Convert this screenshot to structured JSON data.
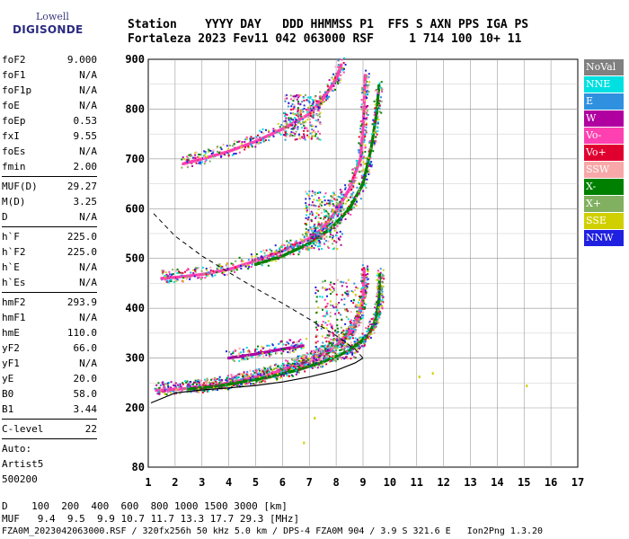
{
  "logo": {
    "line1": "Lowell",
    "line2": "DIGISONDE"
  },
  "header": {
    "labels": "Station    YYYY DAY   DDD HHMMSS P1  FFS S AXN PPS IGA PS",
    "values": "Fortaleza 2023 Fev11 042 063000 RSF     1 714 100 10+ 11"
  },
  "params": [
    {
      "label": "foF2",
      "value": "9.000"
    },
    {
      "label": "foF1",
      "value": "N/A"
    },
    {
      "label": "foF1p",
      "value": "N/A"
    },
    {
      "label": "foE",
      "value": "N/A"
    },
    {
      "label": "foEp",
      "value": "0.53"
    },
    {
      "label": "fxI",
      "value": "9.55"
    },
    {
      "label": "foEs",
      "value": "N/A"
    },
    {
      "label": "fmin",
      "value": "2.00"
    },
    {
      "sep": true
    },
    {
      "label": "MUF(D)",
      "value": "29.27"
    },
    {
      "label": "M(D)",
      "value": "3.25"
    },
    {
      "label": "D",
      "value": "N/A"
    },
    {
      "sep": true
    },
    {
      "label": "h`F",
      "value": "225.0"
    },
    {
      "label": "h`F2",
      "value": "225.0"
    },
    {
      "label": "h`E",
      "value": "N/A"
    },
    {
      "label": "h`Es",
      "value": "N/A"
    },
    {
      "sep": true
    },
    {
      "label": "hmF2",
      "value": "293.9"
    },
    {
      "label": "hmF1",
      "value": "N/A"
    },
    {
      "label": "hmE",
      "value": "110.0"
    },
    {
      "label": "yF2",
      "value": "66.0"
    },
    {
      "label": "yF1",
      "value": "N/A"
    },
    {
      "label": "yE",
      "value": "20.0"
    },
    {
      "label": "B0",
      "value": "58.0"
    },
    {
      "label": "B1",
      "value": "3.44"
    },
    {
      "sep": true
    },
    {
      "label": "C-level",
      "value": "22"
    },
    {
      "sep": true
    }
  ],
  "autoscale": {
    "line1": "Auto:",
    "line2": "Artist5",
    "line3": "500200"
  },
  "legend": [
    {
      "label": "NoVal",
      "color": "#808080"
    },
    {
      "label": "NNE",
      "color": "#00e0e0"
    },
    {
      "label": "E",
      "color": "#3090e0"
    },
    {
      "label": "W",
      "color": "#b000a0"
    },
    {
      "label": "Vo-",
      "color": "#ff40b0"
    },
    {
      "label": "Vo+",
      "color": "#e00030"
    },
    {
      "label": "SSW",
      "color": "#f8a8a8"
    },
    {
      "label": "X-",
      "color": "#008000"
    },
    {
      "label": "X+",
      "color": "#80b060"
    },
    {
      "label": "SSE",
      "color": "#d0d000"
    },
    {
      "label": "NNW",
      "color": "#2020e0"
    }
  ],
  "d_line": "D    100  200  400  600  800 1000 1500 3000 [km]",
  "muf_line": "MUF   9.4  9.5  9.9 10.7 11.7 13.3 17.7 29.3 [MHz]",
  "footer": "FZA0M_2023042063000.RSF / 320fx256h 50 kHz 5.0 km / DPS-4 FZA0M 904 / 3.9 S 321.6 E   Ion2Png 1.3.20",
  "chart_data": {
    "type": "scatter",
    "xlim": [
      1,
      17
    ],
    "ylim": [
      80,
      900
    ],
    "xticks": [
      1,
      2,
      3,
      4,
      5,
      6,
      7,
      8,
      9,
      10,
      11,
      12,
      13,
      14,
      15,
      16,
      17
    ],
    "yticks": [
      80,
      200,
      300,
      400,
      500,
      600,
      700,
      800,
      900
    ],
    "grid": true,
    "traces": [
      {
        "name": "O-trace F",
        "color": "#ff40b0",
        "points": [
          [
            1.3,
            235
          ],
          [
            2,
            237
          ],
          [
            3,
            242
          ],
          [
            4,
            250
          ],
          [
            5,
            262
          ],
          [
            5.8,
            272
          ],
          [
            6.5,
            285
          ],
          [
            7,
            295
          ],
          [
            7.5,
            310
          ],
          [
            8,
            325
          ],
          [
            8.5,
            350
          ],
          [
            8.8,
            380
          ],
          [
            9,
            420
          ],
          [
            9.05,
            480
          ]
        ]
      },
      {
        "name": "X-trace F",
        "color": "#008000",
        "points": [
          [
            2.5,
            238
          ],
          [
            3.5,
            243
          ],
          [
            4.5,
            252
          ],
          [
            5.5,
            262
          ],
          [
            6.5,
            275
          ],
          [
            7.5,
            292
          ],
          [
            8.5,
            315
          ],
          [
            9.2,
            345
          ],
          [
            9.5,
            380
          ],
          [
            9.6,
            420
          ],
          [
            9.62,
            470
          ]
        ]
      },
      {
        "name": "2nd hop O",
        "color": "#ff40b0",
        "points": [
          [
            1.5,
            460
          ],
          [
            2,
            462
          ],
          [
            3,
            468
          ],
          [
            4,
            478
          ],
          [
            5,
            495
          ],
          [
            6,
            515
          ],
          [
            7,
            540
          ],
          [
            7.5,
            560
          ],
          [
            8,
            595
          ],
          [
            8.5,
            640
          ],
          [
            8.9,
            700
          ],
          [
            9,
            760
          ],
          [
            9.05,
            820
          ],
          [
            9.08,
            870
          ]
        ]
      },
      {
        "name": "2nd hop X",
        "color": "#008000",
        "points": [
          [
            5,
            488
          ],
          [
            6,
            505
          ],
          [
            7,
            530
          ],
          [
            7.8,
            560
          ],
          [
            8.5,
            600
          ],
          [
            9,
            650
          ],
          [
            9.3,
            720
          ],
          [
            9.5,
            790
          ],
          [
            9.6,
            850
          ]
        ]
      },
      {
        "name": "3rd hop O",
        "color": "#ff40b0",
        "points": [
          [
            2.3,
            690
          ],
          [
            3,
            700
          ],
          [
            4,
            715
          ],
          [
            5,
            735
          ],
          [
            6,
            760
          ],
          [
            7,
            790
          ],
          [
            7.5,
            820
          ],
          [
            8,
            860
          ],
          [
            8.2,
            890
          ]
        ]
      },
      {
        "name": "Es trace",
        "color": "#b000a0",
        "points": [
          [
            4,
            300
          ],
          [
            5,
            308
          ],
          [
            6,
            318
          ],
          [
            6.8,
            325
          ]
        ]
      }
    ],
    "profile_line": {
      "color": "#000000",
      "style": "solid",
      "points": [
        [
          1.1,
          210
        ],
        [
          2,
          230
        ],
        [
          3,
          236
        ],
        [
          4,
          240
        ],
        [
          5,
          245
        ],
        [
          6,
          252
        ],
        [
          7,
          262
        ],
        [
          8,
          275
        ],
        [
          8.7,
          290
        ],
        [
          9,
          300
        ]
      ]
    },
    "dashed_line": {
      "color": "#000000",
      "style": "dashed",
      "points": [
        [
          1.2,
          590
        ],
        [
          2,
          545
        ],
        [
          3,
          505
        ],
        [
          4,
          472
        ],
        [
          5,
          440
        ],
        [
          6,
          410
        ],
        [
          7,
          378
        ],
        [
          8,
          345
        ],
        [
          8.7,
          318
        ],
        [
          9,
          300
        ]
      ]
    },
    "extra_points": [
      [
        15.1,
        245
      ],
      [
        11.1,
        263
      ],
      [
        11.6,
        270
      ],
      [
        7.2,
        180
      ],
      [
        6.8,
        130
      ]
    ]
  }
}
